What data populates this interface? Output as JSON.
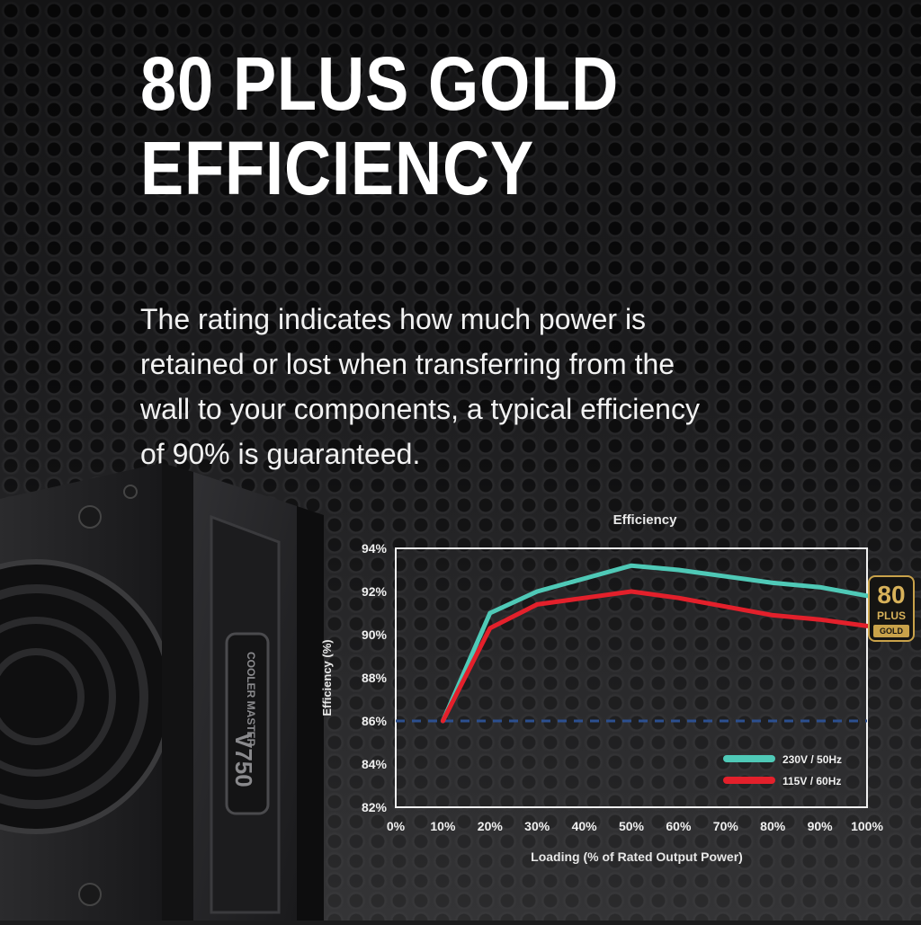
{
  "headline": {
    "line1": "80 PLUS GOLD",
    "line2": "EFFICIENCY"
  },
  "body": {
    "line1": "The rating indicates how much power is",
    "line2": "retained or lost when transferring from the",
    "line3": "wall to your components, a typical efficiency",
    "line4": "of 90% is guaranteed."
  },
  "product": {
    "brand_text": "COOLER MASTER",
    "model_text": "V750"
  },
  "badge": {
    "number": "80",
    "plus": "PLUS",
    "tier": "GOLD"
  },
  "colors": {
    "series_230": "#4fc9b7",
    "series_115": "#e3202b",
    "reference_line": "#2c4f8f",
    "badge_gold": "#c9a24a"
  },
  "chart_data": {
    "type": "line",
    "title": "Efficiency",
    "xlabel": "Loading (% of Rated Output Power)",
    "ylabel": "Efficiency (%)",
    "x": [
      10,
      20,
      30,
      40,
      50,
      60,
      70,
      80,
      90,
      100
    ],
    "xticks": [
      "0%",
      "10%",
      "20%",
      "30%",
      "40%",
      "50%",
      "60%",
      "70%",
      "80%",
      "90%",
      "100%"
    ],
    "yticks": [
      "82%",
      "84%",
      "86%",
      "88%",
      "90%",
      "92%",
      "94%"
    ],
    "xlim": [
      0,
      100
    ],
    "ylim": [
      82,
      94
    ],
    "reference_line": 86,
    "legend_position": "bottom-right",
    "series": [
      {
        "name": "230V / 50Hz",
        "values": [
          86,
          91,
          92,
          92.6,
          93.2,
          93,
          92.7,
          92.4,
          92.2,
          91.8
        ]
      },
      {
        "name": "115V / 60Hz",
        "values": [
          86,
          90.3,
          91.4,
          91.7,
          92,
          91.7,
          91.3,
          90.9,
          90.7,
          90.4
        ]
      }
    ]
  }
}
